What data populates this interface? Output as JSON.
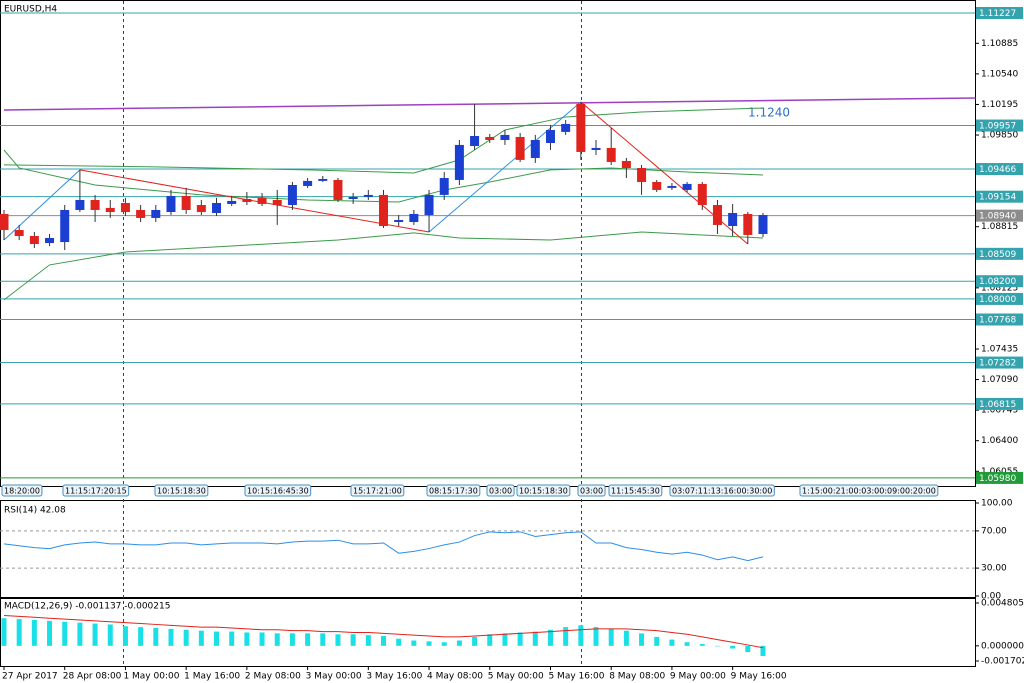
{
  "chart_data": [
    {
      "type": "candlestick",
      "title": "EURUSD,H4",
      "categories": [
        "27 Apr 2017",
        null,
        null,
        null,
        "28 Apr 08:00",
        null,
        null,
        null,
        "1 May 00:00",
        null,
        null,
        null,
        "1 May 16:00",
        null,
        null,
        null,
        "2 May 08:00",
        null,
        null,
        null,
        "3 May 00:00",
        null,
        null,
        null,
        "3 May 16:00",
        null,
        null,
        null,
        "4 May 08:00",
        null,
        null,
        null,
        "5 May 00:00",
        null,
        null,
        null,
        "5 May 16:00",
        null,
        null,
        null,
        "8 May 08:00",
        null,
        null,
        null,
        "9 May 00:00",
        null,
        null,
        null,
        "9 May 16:00",
        null,
        null
      ],
      "open": [
        1.08959,
        1.08778,
        1.0871,
        1.08631,
        1.08642,
        1.09004,
        1.09117,
        1.09027,
        1.09083,
        1.09004,
        1.08914,
        1.08981,
        1.09162,
        1.0906,
        1.0897,
        1.09072,
        1.09128,
        1.0914,
        1.09117,
        1.0906,
        1.09275,
        1.09332,
        1.09343,
        1.09128,
        1.09151,
        1.09174,
        1.08868,
        1.08868,
        1.08947,
        1.09174,
        1.09343,
        1.09726,
        1.09828,
        1.09794,
        1.09828,
        1.09591,
        1.0976,
        1.09885,
        1.10201,
        1.09681,
        1.09704,
        1.09557,
        1.09478,
        1.0932,
        1.09253,
        1.0923,
        1.09298,
        1.0906,
        1.08823,
        1.08959,
        1.08733
      ],
      "high": [
        1.09004,
        1.08835,
        1.08755,
        1.08733,
        1.0906,
        1.09456,
        1.09173,
        1.09117,
        1.0914,
        1.0906,
        1.0906,
        1.0923,
        1.09253,
        1.09117,
        1.0914,
        1.09162,
        1.09207,
        1.09196,
        1.0923,
        1.0932,
        1.09365,
        1.09388,
        1.09365,
        1.09196,
        1.0923,
        1.0923,
        1.08947,
        1.09004,
        1.0923,
        1.09433,
        1.09794,
        1.10201,
        1.09862,
        1.09907,
        1.09873,
        1.09851,
        1.09964,
        1.1002,
        1.10223,
        1.09794,
        1.0993,
        1.09591,
        1.09512,
        1.09343,
        1.09309,
        1.0932,
        1.0932,
        1.09117,
        1.09072,
        1.08981,
        1.0897
      ],
      "low": [
        1.08665,
        1.08665,
        1.08575,
        1.08597,
        1.08552,
        1.08981,
        1.08868,
        1.08914,
        1.08936,
        1.08868,
        1.08868,
        1.08947,
        1.08959,
        1.08947,
        1.08936,
        1.09049,
        1.0906,
        1.09049,
        1.08835,
        1.09004,
        1.09253,
        1.0932,
        1.09094,
        1.09072,
        1.09117,
        1.08801,
        1.08823,
        1.08835,
        1.08755,
        1.09117,
        1.09286,
        1.09681,
        1.0976,
        1.09738,
        1.09546,
        1.09535,
        1.09681,
        1.09851,
        1.09569,
        1.09625,
        1.09512,
        1.09365,
        1.09174,
        1.09207,
        1.0923,
        1.09207,
        1.09004,
        1.08733,
        1.0871,
        1.0862,
        1.08699
      ],
      "close": [
        1.08778,
        1.0871,
        1.0862,
        1.08688,
        1.09004,
        1.09117,
        1.09004,
        1.08981,
        1.08981,
        1.08914,
        1.09004,
        1.09162,
        1.09004,
        1.08981,
        1.09083,
        1.09106,
        1.09094,
        1.09072,
        1.0906,
        1.09286,
        1.09332,
        1.09354,
        1.09117,
        1.09151,
        1.09174,
        1.08823,
        1.08891,
        1.08959,
        1.09174,
        1.09365,
        1.09738,
        1.09839,
        1.09794,
        1.09851,
        1.09569,
        1.09794,
        1.09907,
        1.09975,
        1.09659,
        1.09704,
        1.09546,
        1.09478,
        1.0932,
        1.0923,
        1.09275,
        1.09298,
        1.0906,
        1.08835,
        1.0897,
        1.08722,
        1.08947
      ],
      "up_color": "#1a3fd1",
      "down_color": "#e0231c",
      "ylim": [
        1.059,
        1.1134
      ],
      "yticks": [
        1.10885,
        {
          "value": 1.1054,
          "label": "1.10540"
        },
        1.10195,
        {
          "value": 1.0985,
          "label": "1.09850"
        },
        1.08815,
        1.08125,
        1.07435,
        {
          "value": 1.0709,
          "label": "1.07090"
        },
        1.06745,
        {
          "value": 1.064,
          "label": "1.06400"
        },
        1.06055
      ],
      "levels": [
        1.11227,
        1.09957,
        1.09466,
        1.09154,
        1.08509,
        {
          "value": 1.082,
          "label": "1.08200"
        },
        {
          "value": 1.08,
          "label": "1.08000"
        },
        1.07768,
        1.07282,
        1.06815
      ],
      "level_color": "#35a3ad",
      "support": {
        "value": 1.0598,
        "label": "1.05980"
      },
      "support_color": "#1f9b3a",
      "current": {
        "value": 1.0894,
        "label": "1.08940"
      },
      "current_color": "#8c8c8c",
      "bands": [
        {
          "x": [
            0,
            10,
            20,
            27,
            30,
            33,
            37,
            42,
            50
          ],
          "values": [
            1.09513,
            1.0949,
            1.09456,
            1.09422,
            1.09569,
            1.09907,
            1.10054,
            1.1011,
            1.10155
          ]
        },
        {
          "x": [
            0,
            1,
            6,
            13,
            20,
            26,
            29,
            32,
            36,
            40,
            45,
            50
          ],
          "values": [
            1.09681,
            1.09478,
            1.09286,
            1.09174,
            1.09117,
            1.09094,
            1.0923,
            1.0932,
            1.09456,
            1.09478,
            1.09433,
            1.09399
          ]
        },
        {
          "x": [
            0,
            3,
            8,
            15,
            22,
            27,
            30,
            36,
            42,
            50
          ],
          "values": [
            1.07989,
            1.08384,
            1.0853,
            1.08598,
            1.08665,
            1.08745,
            1.08688,
            1.08665,
            1.08755,
            1.08688
          ]
        }
      ],
      "band_color": "#3c9a4a",
      "zigzag": {
        "x": [
          0,
          5,
          28,
          38,
          49
        ],
        "values": [
          1.08665,
          1.09456,
          1.08755,
          1.10223,
          1.0862
        ],
        "up_color": "#2b8ee8",
        "down_color": "#e0231c"
      },
      "trendline": {
        "x": [
          0,
          64
        ],
        "values": [
          1.10133,
          1.10268
        ],
        "color": "#a040c0"
      },
      "annotation": "1.1240",
      "time_strip": [
        "18:20:00",
        "11:15:17:20:15",
        "10:15:18:30",
        "10:15:16:45:30",
        "15:17:21:00",
        "08:15:17:30",
        "03:00",
        "10:15:18:30",
        "03:00",
        "11:15:45:30",
        "03:07:11:13:16:00:30:00",
        "1:15:00:21:00:03:00:09:00:20:00"
      ]
    },
    {
      "type": "line",
      "title": "RSI(14) 42.08",
      "values": [
        56,
        54,
        52,
        51,
        55,
        57,
        58,
        56,
        56,
        55,
        55,
        57,
        57,
        55,
        56,
        57,
        57,
        57,
        56,
        58,
        59,
        59,
        60,
        56,
        56,
        57,
        46,
        48,
        51,
        55,
        58,
        65,
        69,
        68,
        69,
        64,
        66,
        68,
        69,
        57,
        57,
        52,
        50,
        47,
        45,
        47,
        44,
        39,
        42,
        38,
        42.08
      ],
      "color": "#2b8ee8",
      "ylim": [
        0,
        100
      ],
      "yticks": [
        {
          "value": 100,
          "label": "100.00"
        },
        {
          "value": 70,
          "label": "70.00"
        },
        {
          "value": 30,
          "label": "30.00"
        },
        {
          "value": 0,
          "label": "0.00"
        }
      ]
    },
    {
      "type": "macd",
      "title": "MACD(12,26,9) -0.001137 -0.000215",
      "histogram": {
        "values": [
          0.0031,
          0.003,
          0.0029,
          0.0028,
          0.0027,
          0.0026,
          0.0025,
          0.0024,
          0.0022,
          0.0021,
          0.002,
          0.0019,
          0.0018,
          0.0017,
          0.0016,
          0.0016,
          0.0015,
          0.0015,
          0.0014,
          0.0014,
          0.0014,
          0.0014,
          0.0013,
          0.0013,
          0.0012,
          0.0011,
          0.0008,
          0.0006,
          0.0005,
          0.0004,
          0.0006,
          0.001,
          0.0013,
          0.0014,
          0.0015,
          0.0016,
          0.0018,
          0.0021,
          0.0023,
          0.0021,
          0.0019,
          0.0017,
          0.0014,
          0.001,
          0.0007,
          0.0004,
          0.0002,
          0,
          -0.0003,
          -0.0007,
          -0.001137
        ],
        "color": "#19e0e6"
      },
      "signal": {
        "values": [
          0.0034,
          0.0033,
          0.0032,
          0.0031,
          0.003,
          0.0029,
          0.0028,
          0.0027,
          0.0026,
          0.0025,
          0.0024,
          0.0023,
          0.0022,
          0.0021,
          0.0021,
          0.002,
          0.0019,
          0.0018,
          0.0018,
          0.0017,
          0.0017,
          0.0016,
          0.0016,
          0.0015,
          0.0015,
          0.0014,
          0.0013,
          0.0012,
          0.0011,
          0.001,
          0.001,
          0.0011,
          0.0012,
          0.0013,
          0.0014,
          0.0015,
          0.0016,
          0.0017,
          0.0018,
          0.0019,
          0.0019,
          0.0019,
          0.0018,
          0.0017,
          0.0015,
          0.0013,
          0.001,
          0.0007,
          0.0004,
          0.0001,
          -0.000215
        ],
        "color": "#e0231c"
      },
      "ylim": [
        -0.001702,
        0.004805
      ],
      "yticks": [
        0.004805,
        {
          "value": 0,
          "label": "0.000000"
        },
        -0.001702
      ]
    }
  ]
}
